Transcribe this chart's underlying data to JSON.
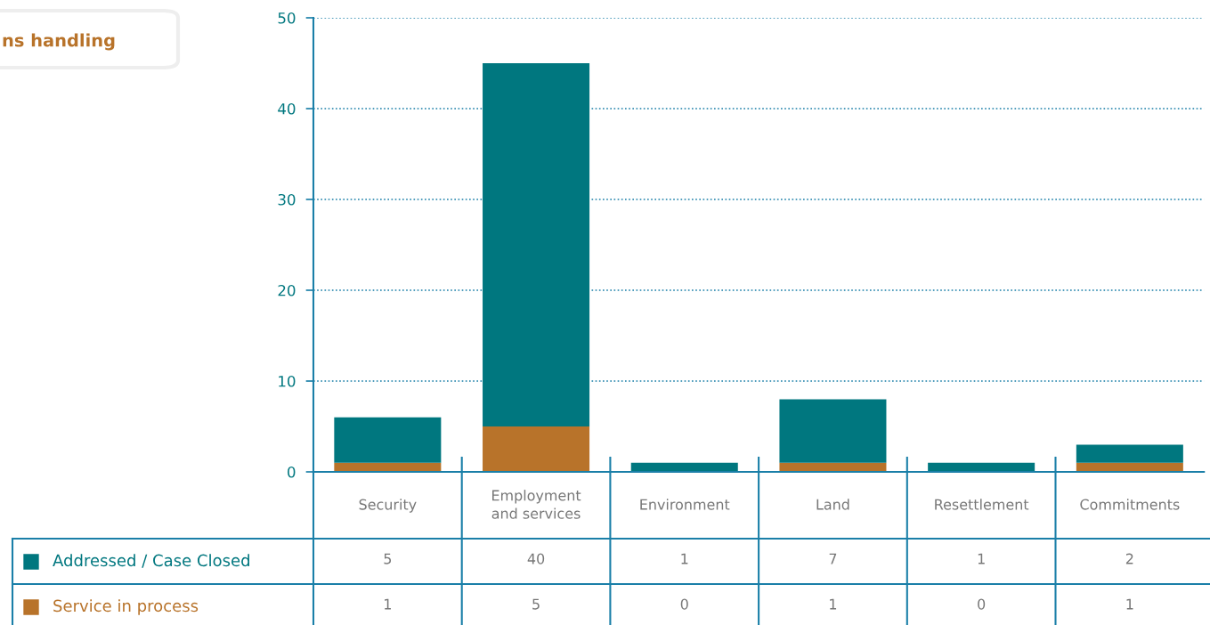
{
  "chart_data": {
    "type": "bar",
    "title": "ns handling",
    "stacked": true,
    "categories": [
      "Security",
      "Employment\nand services",
      "Environment",
      "Land",
      "Resettlement",
      "Commitments"
    ],
    "series": [
      {
        "name": "Service in process",
        "color": "#b8732a",
        "values": [
          1,
          5,
          0,
          1,
          0,
          1
        ]
      },
      {
        "name": "Addressed / Case Closed",
        "color": "#00777f",
        "values": [
          5,
          40,
          1,
          7,
          1,
          2
        ]
      }
    ],
    "ylim": [
      0,
      50
    ],
    "yticks": [
      0,
      10,
      20,
      30,
      40,
      50
    ],
    "grid": "y",
    "legend": "bottom",
    "data_labels": true
  }
}
